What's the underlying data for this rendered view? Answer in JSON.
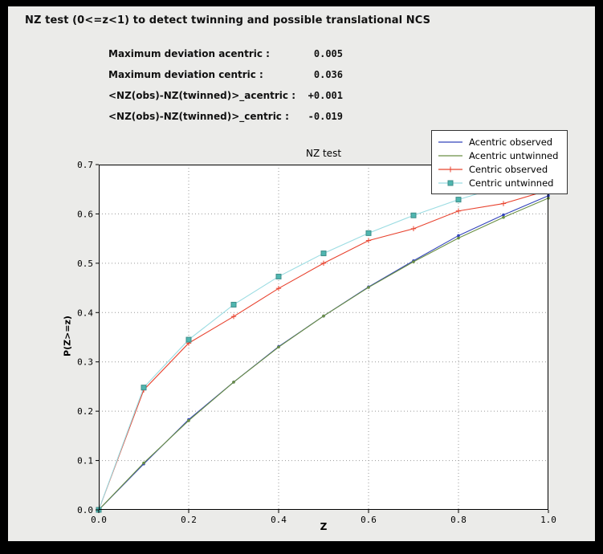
{
  "window": {
    "outer_background": "#000000",
    "panel_background": "#ebebe9"
  },
  "header": {
    "title": "NZ test (0<=z<1) to detect twinning and possible translational NCS"
  },
  "stats": [
    {
      "label": "Maximum deviation acentric :",
      "value": "0.005"
    },
    {
      "label": "Maximum deviation centric :",
      "value": "0.036"
    },
    {
      "label": "<NZ(obs)-NZ(twinned)>_acentric :",
      "value": "+0.001"
    },
    {
      "label": "<NZ(obs)-NZ(twinned)>_centric :",
      "value": "-0.019"
    }
  ],
  "chart_data": {
    "type": "line",
    "title": "NZ test",
    "xlabel": "Z",
    "ylabel": "P(Z>=z)",
    "xlim": [
      0.0,
      1.0
    ],
    "ylim": [
      0.0,
      0.7
    ],
    "x_ticks": [
      "0.0",
      "0.2",
      "0.4",
      "0.6",
      "0.8",
      "1.0"
    ],
    "y_ticks": [
      "0.0",
      "0.1",
      "0.2",
      "0.3",
      "0.4",
      "0.5",
      "0.6",
      "0.7"
    ],
    "grid": true,
    "legend_position": "upper right",
    "colors": {
      "grid": "#999999",
      "axes": "#000000",
      "plot_background": "#ffffff"
    },
    "x": [
      0.0,
      0.1,
      0.2,
      0.3,
      0.4,
      0.5,
      0.6,
      0.7,
      0.8,
      0.9,
      1.0
    ],
    "series": [
      {
        "name": "Acentric observed",
        "color": "#3344bb",
        "marker": "dot",
        "values": [
          0.0,
          0.093,
          0.183,
          0.259,
          0.331,
          0.393,
          0.452,
          0.505,
          0.556,
          0.598,
          0.637
        ]
      },
      {
        "name": "Acentric untwinned",
        "color": "#6a8f44",
        "marker": "dot",
        "values": [
          0.0,
          0.095,
          0.181,
          0.259,
          0.33,
          0.393,
          0.451,
          0.503,
          0.551,
          0.593,
          0.632
        ]
      },
      {
        "name": "Centric observed",
        "color": "#e8432f",
        "marker": "plus",
        "values": [
          0.0,
          0.243,
          0.338,
          0.392,
          0.449,
          0.5,
          0.546,
          0.57,
          0.606,
          0.621,
          0.648
        ]
      },
      {
        "name": "Centric untwinned",
        "color": "#9bdce2",
        "marker": "square",
        "marker_color": "#4fb6b0",
        "marker_edge": "#3f8e89",
        "values": [
          0.0,
          0.248,
          0.345,
          0.416,
          0.473,
          0.52,
          0.561,
          0.597,
          0.629,
          0.657,
          0.683
        ]
      }
    ]
  }
}
